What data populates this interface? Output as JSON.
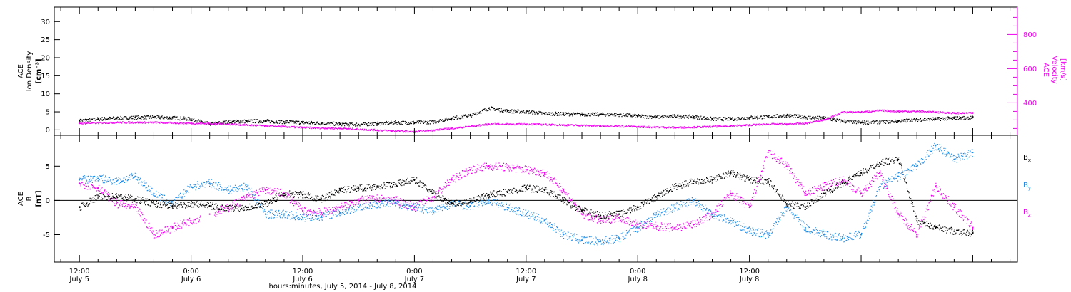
{
  "chart_data": [
    {
      "type": "scatter",
      "panel": "top",
      "ylabel": [
        "ACE",
        "Ion Density",
        "[cm⁻³]"
      ],
      "ylim": [
        -1.5,
        34
      ],
      "yticks": [
        "0",
        "5",
        "10",
        "15",
        "20",
        "25",
        "30"
      ],
      "y2label": [
        "ACE",
        "Velocity",
        "[km/s]"
      ],
      "y2lim": [
        210,
        960
      ],
      "y2ticks": [
        "400",
        "600",
        "800"
      ],
      "colors": {
        "density": "#000000",
        "velocity": "#ee00ee"
      },
      "series": [
        {
          "key": "density",
          "x": [
            0,
            2,
            4,
            6,
            8,
            10,
            12,
            14,
            16,
            18,
            20,
            22,
            24,
            26,
            28,
            30,
            32,
            34,
            36,
            38,
            40,
            42,
            44,
            46,
            48,
            50,
            52,
            54,
            56,
            58,
            60,
            62,
            64,
            66,
            68,
            70,
            72,
            74,
            76,
            78,
            80,
            82,
            84,
            86,
            88,
            90,
            92,
            94,
            96
          ],
          "y": [
            2.5,
            3,
            3.2,
            3.4,
            3.5,
            3.3,
            3,
            1.6,
            2.2,
            2.4,
            2.4,
            2.2,
            2,
            1.8,
            1.6,
            1.5,
            1.7,
            2,
            2,
            2.2,
            3.2,
            4,
            6,
            5.2,
            5,
            4.5,
            4.4,
            4.3,
            4.3,
            4.2,
            3.8,
            3.6,
            3.8,
            3.6,
            3,
            3,
            3.4,
            3.6,
            4,
            3.5,
            3.2,
            2.4,
            2,
            2.2,
            2.4,
            2.8,
            3,
            3.2,
            3.4
          ]
        },
        {
          "key": "velocity",
          "x": [
            0,
            4,
            8,
            12,
            16,
            20,
            24,
            28,
            32,
            36,
            40,
            44,
            48,
            52,
            56,
            60,
            64,
            68,
            70,
            72,
            74,
            76,
            78,
            80,
            82,
            84,
            86,
            88,
            90,
            92,
            94,
            96
          ],
          "y": [
            280,
            285,
            285,
            280,
            275,
            265,
            255,
            250,
            240,
            230,
            250,
            275,
            275,
            270,
            265,
            260,
            255,
            260,
            265,
            270,
            275,
            275,
            280,
            300,
            345,
            345,
            355,
            350,
            350,
            345,
            340,
            340
          ]
        }
      ]
    },
    {
      "type": "scatter",
      "panel": "bottom",
      "ylabel": [
        "ACE",
        "B",
        "[nT]"
      ],
      "ylim": [
        -9,
        9.5
      ],
      "yticks": [
        "-5",
        "0",
        "5"
      ],
      "legend": {
        "Bx": "B",
        "By": "B",
        "Bz": "B",
        "sub_x": "x",
        "sub_y": "y",
        "sub_z": "z",
        "placement": "right"
      },
      "colors": {
        "Bx": "#000000",
        "By": "#1e8ce6",
        "Bz": "#ee00ee"
      },
      "series": [
        {
          "key": "Bx",
          "x": [
            0,
            2,
            4,
            6,
            8,
            10,
            12,
            14,
            16,
            18,
            20,
            22,
            24,
            26,
            28,
            30,
            32,
            34,
            36,
            38,
            40,
            42,
            44,
            46,
            48,
            50,
            52,
            54,
            56,
            58,
            60,
            62,
            64,
            66,
            68,
            70,
            72,
            74,
            76,
            78,
            80,
            82,
            84,
            86,
            88,
            90,
            92,
            94,
            96
          ],
          "y": [
            -1,
            0.5,
            0.6,
            0.2,
            -0.5,
            -0.8,
            -0.5,
            -0.8,
            -1.2,
            -1,
            -0.5,
            1,
            0.8,
            0.2,
            1.5,
            1.8,
            2,
            2.4,
            3,
            1,
            -0.5,
            -0.2,
            0.8,
            1.2,
            1.8,
            1.5,
            0,
            -1.5,
            -2.2,
            -2,
            -1,
            0.5,
            2,
            2.8,
            3,
            4,
            3,
            2.8,
            -0.5,
            -1,
            1,
            2.5,
            4,
            5.5,
            6,
            -3,
            -4,
            -4.5,
            -4.8
          ]
        },
        {
          "key": "By",
          "x": [
            0,
            2,
            4,
            6,
            8,
            10,
            12,
            14,
            16,
            18,
            20,
            22,
            24,
            26,
            28,
            30,
            32,
            34,
            36,
            38,
            40,
            42,
            44,
            46,
            48,
            50,
            52,
            54,
            56,
            58,
            60,
            62,
            64,
            66,
            68,
            70,
            72,
            74,
            76,
            78,
            80,
            82,
            84,
            86,
            88,
            90,
            92,
            94,
            96
          ],
          "y": [
            3,
            3.2,
            2.8,
            3.5,
            1,
            -0.5,
            2,
            2.5,
            1.5,
            2,
            -2,
            -2,
            -2.5,
            -2.3,
            -1.8,
            -1,
            -0.5,
            -0.5,
            -1,
            -1.5,
            -0.5,
            -0.8,
            0,
            -1,
            -2,
            -3,
            -5,
            -5.8,
            -6,
            -5.5,
            -4,
            -2,
            -1,
            0,
            -2,
            -3,
            -4.5,
            -5,
            -1,
            -4,
            -5,
            -5.5,
            -5,
            2,
            3.5,
            5,
            8,
            6,
            7
          ]
        },
        {
          "key": "Bz",
          "x": [
            0,
            2,
            4,
            6,
            8,
            10,
            12,
            14,
            16,
            18,
            20,
            22,
            24,
            26,
            28,
            30,
            32,
            34,
            36,
            38,
            40,
            42,
            44,
            46,
            48,
            50,
            52,
            54,
            56,
            58,
            60,
            62,
            64,
            66,
            68,
            70,
            72,
            74,
            76,
            78,
            80,
            82,
            84,
            86,
            88,
            90,
            92,
            94,
            96
          ],
          "y": [
            2.5,
            1.8,
            -0.5,
            -1,
            -5,
            -4,
            -3,
            -2,
            -1,
            0.5,
            1.5,
            1,
            -1.5,
            -1.8,
            -1,
            0,
            0.2,
            0,
            -1,
            0.5,
            3,
            4.5,
            5,
            4.8,
            4.5,
            4,
            1.5,
            -2,
            -3,
            -2.5,
            -3.5,
            -3.8,
            -4,
            -3.5,
            -2,
            1,
            -1,
            7,
            5,
            1,
            2,
            3,
            1,
            4,
            -2,
            -5,
            2,
            -1,
            -4
          ]
        }
      ]
    }
  ],
  "xaxis": {
    "xlim": [
      -2.7,
      100.8
    ],
    "ticks": [
      {
        "x": 0,
        "time": "12:00",
        "date": "July 5"
      },
      {
        "x": 12,
        "time": "0:00",
        "date": "July 6"
      },
      {
        "x": 24,
        "time": "12:00",
        "date": "July 6"
      },
      {
        "x": 36,
        "time": "0:00",
        "date": "July 7"
      },
      {
        "x": 48,
        "time": "12:00",
        "date": "July 7"
      },
      {
        "x": 60,
        "time": "0:00",
        "date": "July 8"
      },
      {
        "x": 72,
        "time": "12:00",
        "date": "July 8"
      }
    ],
    "label": "hours:minutes, July  5, 2014 - July  8, 2014"
  }
}
